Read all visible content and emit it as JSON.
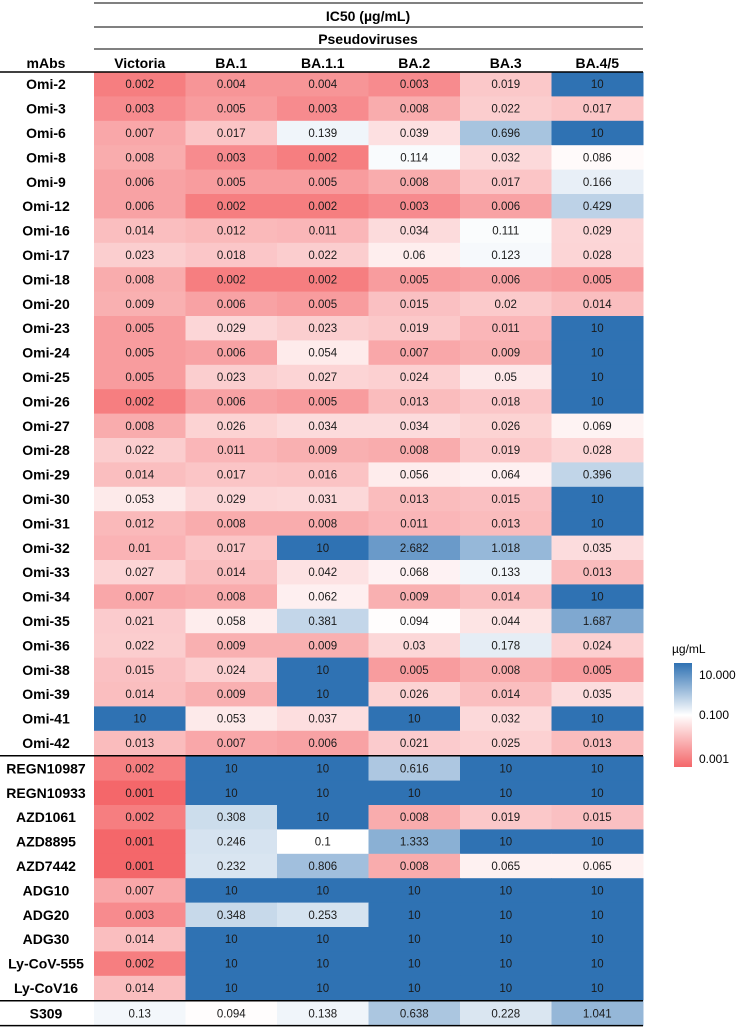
{
  "chart_data": {
    "type": "heatmap",
    "title": "IC50 (µg/mL)",
    "subtitle": "Pseudoviruses",
    "row_header": "mAbs",
    "columns": [
      "Victoria",
      "BA.1",
      "BA.1.1",
      "BA.2",
      "BA.3",
      "BA.4/5"
    ],
    "groups": [
      {
        "rows": [
          {
            "label": "Omi-2",
            "values": [
              "0.002",
              "0.004",
              "0.004",
              "0.003",
              "0.019",
              "10"
            ]
          },
          {
            "label": "Omi-3",
            "values": [
              "0.003",
              "0.005",
              "0.003",
              "0.008",
              "0.022",
              "0.017"
            ]
          },
          {
            "label": "Omi-6",
            "values": [
              "0.007",
              "0.017",
              "0.139",
              "0.039",
              "0.696",
              "10"
            ]
          },
          {
            "label": "Omi-8",
            "values": [
              "0.008",
              "0.003",
              "0.002",
              "0.114",
              "0.032",
              "0.086"
            ]
          },
          {
            "label": "Omi-9",
            "values": [
              "0.006",
              "0.005",
              "0.005",
              "0.008",
              "0.017",
              "0.166"
            ]
          },
          {
            "label": "Omi-12",
            "values": [
              "0.006",
              "0.002",
              "0.002",
              "0.003",
              "0.006",
              "0.429"
            ]
          },
          {
            "label": "Omi-16",
            "values": [
              "0.014",
              "0.012",
              "0.011",
              "0.034",
              "0.111",
              "0.029"
            ]
          },
          {
            "label": "Omi-17",
            "values": [
              "0.023",
              "0.018",
              "0.022",
              "0.06",
              "0.123",
              "0.028"
            ]
          },
          {
            "label": "Omi-18",
            "values": [
              "0.008",
              "0.002",
              "0.002",
              "0.005",
              "0.006",
              "0.005"
            ]
          },
          {
            "label": "Omi-20",
            "values": [
              "0.009",
              "0.006",
              "0.005",
              "0.015",
              "0.02",
              "0.014"
            ]
          },
          {
            "label": "Omi-23",
            "values": [
              "0.005",
              "0.029",
              "0.023",
              "0.019",
              "0.011",
              "10"
            ]
          },
          {
            "label": "Omi-24",
            "values": [
              "0.005",
              "0.006",
              "0.054",
              "0.007",
              "0.009",
              "10"
            ]
          },
          {
            "label": "Omi-25",
            "values": [
              "0.005",
              "0.023",
              "0.027",
              "0.024",
              "0.05",
              "10"
            ]
          },
          {
            "label": "Omi-26",
            "values": [
              "0.002",
              "0.006",
              "0.005",
              "0.013",
              "0.018",
              "10"
            ]
          },
          {
            "label": "Omi-27",
            "values": [
              "0.008",
              "0.026",
              "0.034",
              "0.034",
              "0.026",
              "0.069"
            ]
          },
          {
            "label": "Omi-28",
            "values": [
              "0.022",
              "0.011",
              "0.009",
              "0.008",
              "0.019",
              "0.028"
            ]
          },
          {
            "label": "Omi-29",
            "values": [
              "0.014",
              "0.017",
              "0.016",
              "0.056",
              "0.064",
              "0.396"
            ]
          },
          {
            "label": "Omi-30",
            "values": [
              "0.053",
              "0.029",
              "0.031",
              "0.013",
              "0.015",
              "10"
            ]
          },
          {
            "label": "Omi-31",
            "values": [
              "0.012",
              "0.008",
              "0.008",
              "0.011",
              "0.013",
              "10"
            ]
          },
          {
            "label": "Omi-32",
            "values": [
              "0.01",
              "0.017",
              "10",
              "2.682",
              "1.018",
              "0.035"
            ]
          },
          {
            "label": "Omi-33",
            "values": [
              "0.027",
              "0.014",
              "0.042",
              "0.068",
              "0.133",
              "0.013"
            ]
          },
          {
            "label": "Omi-34",
            "values": [
              "0.007",
              "0.008",
              "0.062",
              "0.009",
              "0.014",
              "10"
            ]
          },
          {
            "label": "Omi-35",
            "values": [
              "0.021",
              "0.058",
              "0.381",
              "0.094",
              "0.044",
              "1.687"
            ]
          },
          {
            "label": "Omi-36",
            "values": [
              "0.022",
              "0.009",
              "0.009",
              "0.03",
              "0.178",
              "0.024"
            ]
          },
          {
            "label": "Omi-38",
            "values": [
              "0.015",
              "0.024",
              "10",
              "0.005",
              "0.008",
              "0.005"
            ]
          },
          {
            "label": "Omi-39",
            "values": [
              "0.014",
              "0.009",
              "10",
              "0.026",
              "0.014",
              "0.035"
            ]
          },
          {
            "label": "Omi-41",
            "values": [
              "10",
              "0.053",
              "0.037",
              "10",
              "0.032",
              "10"
            ]
          },
          {
            "label": "Omi-42",
            "values": [
              "0.013",
              "0.007",
              "0.006",
              "0.021",
              "0.025",
              "0.013"
            ]
          }
        ]
      },
      {
        "rows": [
          {
            "label": "REGN10987",
            "values": [
              "0.002",
              "10",
              "10",
              "0.616",
              "10",
              "10"
            ]
          },
          {
            "label": "REGN10933",
            "values": [
              "0.001",
              "10",
              "10",
              "10",
              "10",
              "10"
            ]
          },
          {
            "label": "AZD1061",
            "values": [
              "0.002",
              "0.308",
              "10",
              "0.008",
              "0.019",
              "0.015"
            ]
          },
          {
            "label": "AZD8895",
            "values": [
              "0.001",
              "0.246",
              "0.1",
              "1.333",
              "10",
              "10"
            ]
          },
          {
            "label": "AZD7442",
            "values": [
              "0.001",
              "0.232",
              "0.806",
              "0.008",
              "0.065",
              "0.065"
            ]
          },
          {
            "label": "ADG10",
            "values": [
              "0.007",
              "10",
              "10",
              "10",
              "10",
              "10"
            ]
          },
          {
            "label": "ADG20",
            "values": [
              "0.003",
              "0.348",
              "0.253",
              "10",
              "10",
              "10"
            ]
          },
          {
            "label": "ADG30",
            "values": [
              "0.014",
              "10",
              "10",
              "10",
              "10",
              "10"
            ]
          },
          {
            "label": "Ly-CoV-555",
            "values": [
              "0.002",
              "10",
              "10",
              "10",
              "10",
              "10"
            ]
          },
          {
            "label": "Ly-CoV16",
            "values": [
              "0.014",
              "10",
              "10",
              "10",
              "10",
              "10"
            ]
          }
        ]
      },
      {
        "rows": [
          {
            "label": "S309",
            "values": [
              "0.13",
              "0.094",
              "0.138",
              "0.638",
              "0.228",
              "1.041"
            ]
          }
        ]
      }
    ],
    "color_scale": {
      "type": "log",
      "min": 0.001,
      "mid": 0.1,
      "max": 10,
      "min_color": "#f4676a",
      "mid_color": "#ffffff",
      "max_color": "#2f72b3"
    },
    "legend": {
      "title": "µg/mL",
      "ticks": [
        "10.000",
        "0.100",
        "0.001"
      ],
      "placement": "right"
    }
  }
}
